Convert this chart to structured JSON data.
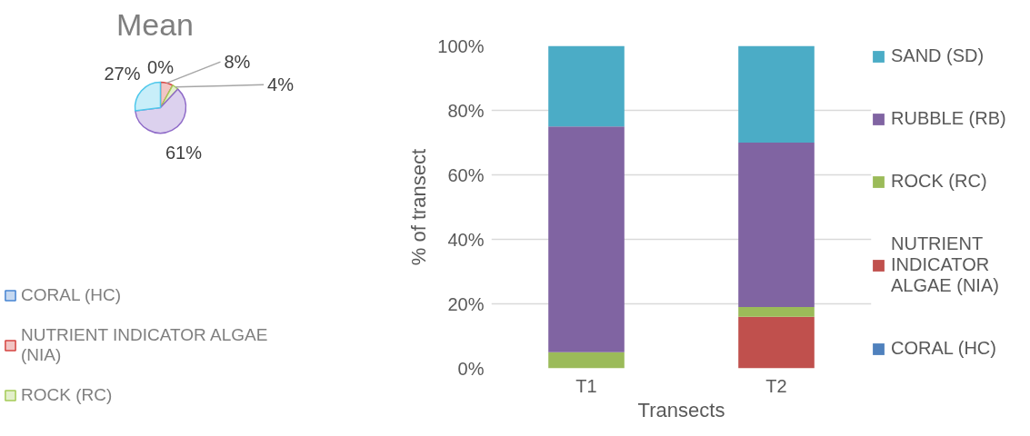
{
  "chart_data": [
    {
      "type": "pie",
      "title": "Mean",
      "categories": [
        "CORAL (HC)",
        "NUTRIENT INDICATOR ALGAE (NIA)",
        "ROCK (RC)",
        null,
        null
      ],
      "values": [
        0,
        8,
        4,
        61,
        27
      ],
      "colors": [
        "#c6d9f1",
        "#f2c5c4",
        "#e3efcb",
        "#dcd1ee",
        "#c8eef9"
      ],
      "value_labels": [
        "0%",
        "8%",
        "4%",
        "61%",
        "27%"
      ],
      "legend": "bottom left"
    },
    {
      "type": "bar",
      "stacked": true,
      "categories": [
        "T1",
        "T2"
      ],
      "xlabel": "Transects",
      "ylabel": "% of transect",
      "series": [
        {
          "name": "CORAL (HC)",
          "color": "#4f81bd",
          "values": [
            0,
            0
          ]
        },
        {
          "name": "NUTRIENT INDICATOR ALGAE (NIA)",
          "color": "#c0504d",
          "values": [
            0,
            16
          ]
        },
        {
          "name": "ROCK (RC)",
          "color": "#9bbb59",
          "values": [
            5,
            3
          ]
        },
        {
          "name": "RUBBLE (RB)",
          "color": "#8064a2",
          "values": [
            70,
            51
          ]
        },
        {
          "name": "SAND (SD)",
          "color": "#4bacc6",
          "values": [
            25,
            30
          ]
        }
      ],
      "ylim": [
        0,
        100
      ],
      "yticks": [
        {
          "value": 0,
          "label": "0%"
        },
        {
          "value": 20,
          "label": "20%"
        },
        {
          "value": 40,
          "label": "40%"
        },
        {
          "value": 60,
          "label": "60%"
        },
        {
          "value": 80,
          "label": "80%"
        },
        {
          "value": 100,
          "label": "100%"
        }
      ],
      "grid": "y",
      "legend": "right"
    }
  ]
}
